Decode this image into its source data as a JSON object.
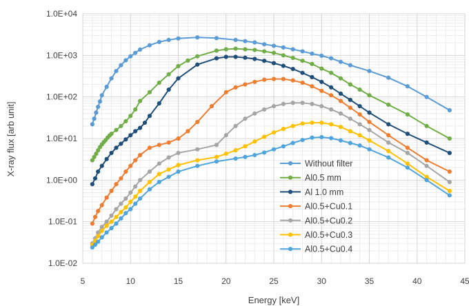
{
  "chart_data": {
    "type": "line",
    "title": "",
    "xlabel": "Energy [keV]",
    "ylabel": "X-ray flux [arb unit]",
    "xlim": [
      5,
      45
    ],
    "ylim": [
      0.01,
      10000
    ],
    "yscale": "log",
    "grid": true,
    "legend_position": "bottom-right",
    "x_ticks": [
      "5",
      "10",
      "15",
      "20",
      "25",
      "30",
      "35",
      "40",
      "45"
    ],
    "y_ticks": [
      "1.0E-02",
      "1.0E-01",
      "1.0E+00",
      "1.0E+01",
      "1.0E+02",
      "1.0E+03",
      "1.0E+04"
    ],
    "series": [
      {
        "name": "Without filter",
        "color": "#5b9bd5",
        "x": [
          6.0,
          6.2,
          6.4,
          6.6,
          6.8,
          7.0,
          7.5,
          8.0,
          8.5,
          9.0,
          9.5,
          10.0,
          10.5,
          11.0,
          12.0,
          13.0,
          14.0,
          15.0,
          17.0,
          19.0,
          21.0,
          22.0,
          23.0,
          24.0,
          25.0,
          26.0,
          27.0,
          28.0,
          29.0,
          30.0,
          31.0,
          32.0,
          33.0,
          35.0,
          37.0,
          39.0,
          41.0,
          43.4
        ],
        "y": [
          22,
          30,
          42,
          58,
          78,
          110,
          175,
          280,
          420,
          580,
          760,
          950,
          1150,
          1380,
          1750,
          2100,
          2350,
          2550,
          2700,
          2600,
          2350,
          2200,
          2050,
          1850,
          1700,
          1550,
          1400,
          1250,
          1100,
          980,
          850,
          700,
          580,
          420,
          290,
          180,
          100,
          48
        ]
      },
      {
        "name": "Al0.5 mm",
        "color": "#70ad47",
        "x": [
          6.0,
          6.2,
          6.4,
          6.6,
          6.8,
          7.0,
          7.2,
          7.4,
          7.6,
          7.8,
          8.0,
          8.5,
          9.0,
          9.5,
          10.0,
          10.5,
          11.0,
          12.0,
          13.0,
          14.0,
          15.0,
          16.0,
          17.0,
          19.0,
          20.0,
          21.0,
          22.0,
          23.0,
          24.0,
          25.0,
          26.0,
          27.0,
          28.0,
          29.0,
          30.0,
          31.0,
          32.0,
          33.0,
          34.0,
          35.0,
          37.0,
          39.0,
          41.0,
          43.4
        ],
        "y": [
          3.0,
          3.6,
          4.3,
          5.2,
          6.2,
          7.2,
          8.2,
          9.2,
          10.5,
          11.8,
          13,
          16,
          20,
          26,
          35,
          50,
          80,
          130,
          220,
          350,
          550,
          750,
          950,
          1300,
          1400,
          1450,
          1400,
          1350,
          1250,
          1150,
          1000,
          870,
          740,
          620,
          480,
          380,
          280,
          200,
          150,
          110,
          65,
          38,
          20,
          10
        ]
      },
      {
        "name": "Al 1.0 mm",
        "color": "#1f4e79",
        "x": [
          6.0,
          6.3,
          6.6,
          7.0,
          7.5,
          8.0,
          8.5,
          9.0,
          9.5,
          10.0,
          10.5,
          11.0,
          11.5,
          12.0,
          13.0,
          14.0,
          15.0,
          17.0,
          19.0,
          20.0,
          21.0,
          22.0,
          23.0,
          24.0,
          25.0,
          26.0,
          27.0,
          28.0,
          29.0,
          30.0,
          31.0,
          32.0,
          33.0,
          34.0,
          35.0,
          37.0,
          39.0,
          41.0,
          43.4
        ],
        "y": [
          0.8,
          1.1,
          1.6,
          2.2,
          3.2,
          4.5,
          6.0,
          7.5,
          9.5,
          12,
          15,
          18,
          24,
          35,
          70,
          150,
          280,
          600,
          850,
          920,
          920,
          880,
          820,
          740,
          650,
          560,
          470,
          380,
          300,
          230,
          170,
          120,
          85,
          60,
          42,
          22,
          13,
          8,
          4.5
        ]
      },
      {
        "name": "Al0.5+Cu0.1",
        "color": "#ed7d31",
        "x": [
          6.0,
          6.3,
          6.6,
          7.0,
          7.5,
          8.0,
          8.5,
          9.0,
          9.5,
          10.0,
          10.5,
          11.0,
          12.0,
          13.0,
          14.0,
          15.0,
          16.0,
          17.0,
          18.5,
          20.0,
          21.0,
          22.0,
          23.0,
          24.0,
          25.0,
          26.0,
          27.0,
          28.0,
          29.0,
          30.0,
          31.0,
          32.0,
          33.0,
          34.0,
          35.0,
          37.0,
          39.0,
          41.0,
          43.4
        ],
        "y": [
          0.09,
          0.13,
          0.18,
          0.25,
          0.38,
          0.55,
          0.8,
          1.1,
          1.6,
          2.2,
          3.0,
          4.0,
          6,
          7,
          8,
          10,
          15,
          25,
          60,
          130,
          170,
          200,
          230,
          260,
          270,
          270,
          250,
          220,
          180,
          140,
          110,
          80,
          55,
          38,
          25,
          12,
          6,
          3,
          1.6
        ]
      },
      {
        "name": "Al0.5+Cu0.2",
        "color": "#a5a5a5",
        "x": [
          6.0,
          6.3,
          6.6,
          7.0,
          7.5,
          8.0,
          8.5,
          9.0,
          9.5,
          10.0,
          10.5,
          11.0,
          12.0,
          13.0,
          14.0,
          15.0,
          17.0,
          19.0,
          20.0,
          21.0,
          22.0,
          23.0,
          24.0,
          25.0,
          26.0,
          27.0,
          28.0,
          29.0,
          30.0,
          31.0,
          32.0,
          33.0,
          34.0,
          35.0,
          37.0,
          39.0,
          41.0,
          43.4
        ],
        "y": [
          0.03,
          0.04,
          0.055,
          0.075,
          0.1,
          0.14,
          0.2,
          0.27,
          0.36,
          0.5,
          0.7,
          1.0,
          1.6,
          2.5,
          3.5,
          4.5,
          5.5,
          7,
          12,
          20,
          30,
          40,
          50,
          60,
          68,
          72,
          72,
          68,
          60,
          50,
          40,
          30,
          22,
          16,
          8,
          4.5,
          2.2,
          0.9
        ]
      },
      {
        "name": "Al0.5+Cu0.3",
        "color": "#ffc000",
        "x": [
          6.0,
          6.3,
          6.6,
          7.0,
          7.5,
          8.0,
          8.5,
          9.0,
          9.5,
          10.0,
          10.5,
          11.0,
          12.0,
          13.0,
          14.0,
          15.0,
          17.0,
          19.0,
          20.0,
          21.0,
          22.0,
          23.0,
          24.0,
          25.0,
          26.0,
          27.0,
          28.0,
          29.0,
          30.0,
          31.0,
          32.0,
          33.0,
          34.0,
          35.0,
          37.0,
          39.0,
          41.0,
          43.4
        ],
        "y": [
          0.028,
          0.035,
          0.045,
          0.06,
          0.08,
          0.1,
          0.13,
          0.17,
          0.22,
          0.3,
          0.4,
          0.55,
          0.9,
          1.4,
          1.8,
          2.3,
          3.0,
          3.6,
          4.3,
          5.2,
          6.5,
          8.5,
          11,
          14,
          17,
          20,
          23,
          24,
          24,
          22,
          19,
          15,
          12,
          9,
          5,
          2.5,
          1.2,
          0.55
        ]
      },
      {
        "name": "Al0.5+Cu0.4",
        "color": "#4ea4db",
        "x": [
          6.0,
          6.3,
          6.6,
          7.0,
          7.5,
          8.0,
          8.5,
          9.0,
          9.5,
          10.0,
          10.5,
          11.0,
          12.0,
          13.0,
          14.0,
          15.0,
          17.0,
          19.0,
          21.0,
          22.0,
          23.0,
          24.0,
          25.0,
          26.0,
          27.0,
          28.0,
          29.0,
          30.0,
          31.0,
          32.0,
          33.0,
          34.0,
          35.0,
          37.0,
          39.0,
          41.0,
          43.4
        ],
        "y": [
          0.024,
          0.028,
          0.033,
          0.042,
          0.055,
          0.07,
          0.09,
          0.12,
          0.16,
          0.2,
          0.27,
          0.36,
          0.6,
          0.9,
          1.2,
          1.6,
          2.2,
          2.8,
          3.3,
          3.6,
          4.0,
          4.6,
          5.5,
          6.5,
          7.8,
          9.2,
          10.5,
          10.8,
          10.2,
          9.0,
          7.8,
          6.8,
          5.5,
          3.5,
          2.0,
          1.0,
          0.43
        ]
      }
    ]
  }
}
